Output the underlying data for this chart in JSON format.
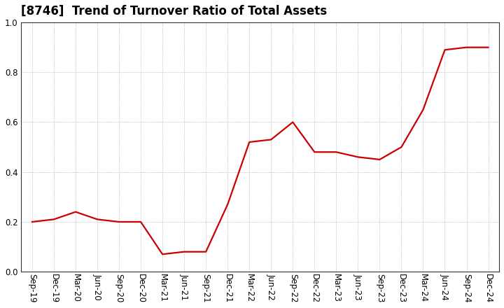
{
  "title": "[8746]  Trend of Turnover Ratio of Total Assets",
  "labels": [
    "Sep-19",
    "Dec-19",
    "Mar-20",
    "Jun-20",
    "Sep-20",
    "Dec-20",
    "Mar-21",
    "Jun-21",
    "Sep-21",
    "Dec-21",
    "Mar-22",
    "Jun-22",
    "Sep-22",
    "Dec-22",
    "Mar-23",
    "Jun-23",
    "Sep-23",
    "Dec-23",
    "Mar-24",
    "Jun-24",
    "Sep-24",
    "Dec-24"
  ],
  "values": [
    0.2,
    0.21,
    0.24,
    0.21,
    0.2,
    0.2,
    0.07,
    0.08,
    0.08,
    0.27,
    0.52,
    0.53,
    0.6,
    0.48,
    0.48,
    0.46,
    0.45,
    0.5,
    0.65,
    0.89,
    0.9,
    0.9
  ],
  "line_color": "#cc0000",
  "line_width": 1.6,
  "ylim": [
    0.0,
    1.0
  ],
  "yticks": [
    0.0,
    0.2,
    0.4,
    0.6,
    0.8,
    1.0
  ],
  "grid_color": "#999999",
  "background_color": "#ffffff",
  "title_fontsize": 12,
  "tick_fontsize": 8.5,
  "label_rotation": 270
}
